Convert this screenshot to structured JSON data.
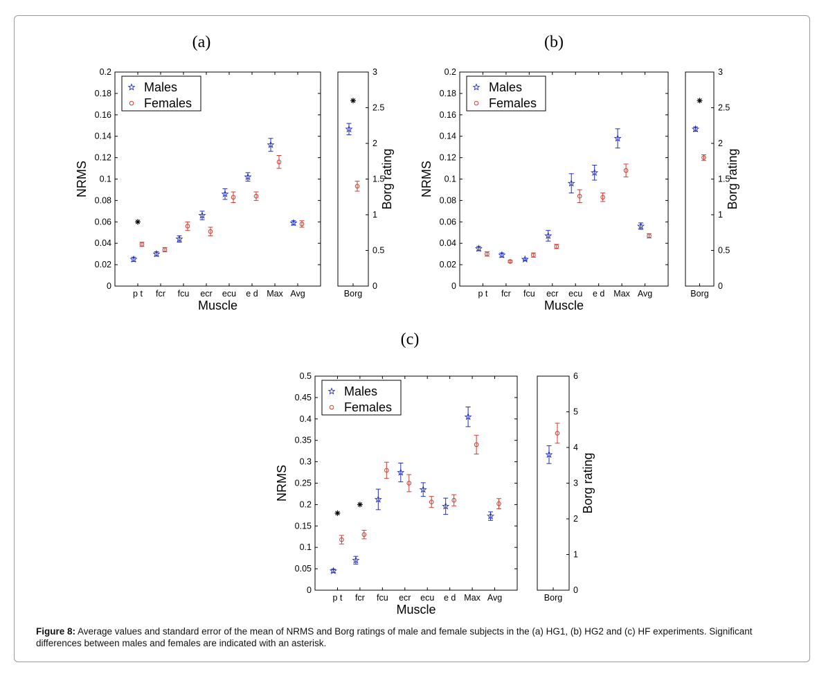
{
  "caption": {
    "label": "Figure 8:",
    "text": " Average values and standard error of the mean of NRMS and Borg ratings of male and female subjects in the (a) HG1, (b) HG2 and (c) HF experiments. Significant differences between males and females are indicated with an asterisk."
  },
  "colors": {
    "males": "#1f2bbf",
    "females": "#d23a2e",
    "asterisk": "#000000",
    "axis": "#000000"
  },
  "chart_data": [
    {
      "panel": "(a)",
      "type": "scatter",
      "xlabel": "Muscle",
      "ylabel": "NRMS",
      "categories": [
        "p t",
        "fcr",
        "fcu",
        "ecr",
        "ecu",
        "e d",
        "Max",
        "Avg"
      ],
      "ylim": [
        0,
        0.2
      ],
      "yticks": [
        0,
        0.02,
        0.04,
        0.06,
        0.08,
        0.1,
        0.12,
        0.14,
        0.16,
        0.18,
        0.2
      ],
      "legend": {
        "placement": "top-left",
        "entries": [
          "Males",
          "Females"
        ]
      },
      "series": [
        {
          "name": "Males",
          "marker": "star",
          "values": [
            0.025,
            0.03,
            0.044,
            0.066,
            0.086,
            0.102,
            0.132,
            0.059
          ],
          "sem": [
            0.002,
            0.002,
            0.003,
            0.004,
            0.005,
            0.004,
            0.006,
            0.002
          ]
        },
        {
          "name": "Females",
          "marker": "circle",
          "values": [
            0.039,
            0.034,
            0.056,
            0.051,
            0.083,
            0.084,
            0.116,
            0.058
          ],
          "sem": [
            0.002,
            0.002,
            0.004,
            0.004,
            0.005,
            0.004,
            0.006,
            0.003
          ]
        }
      ],
      "significant": [
        0.06,
        null,
        null,
        null,
        null,
        null,
        null,
        null
      ],
      "borg": {
        "ylabel": "Borg rating",
        "category": "Borg",
        "ylim": [
          0,
          3
        ],
        "yticks": [
          0,
          0.5,
          1,
          1.5,
          2,
          2.5,
          3
        ],
        "males": {
          "value": 2.2,
          "sem": 0.08
        },
        "females": {
          "value": 1.4,
          "sem": 0.07
        },
        "significant": 2.6
      }
    },
    {
      "panel": "(b)",
      "type": "scatter",
      "xlabel": "Muscle",
      "ylabel": "NRMS",
      "categories": [
        "p t",
        "fcr",
        "fcu",
        "ecr",
        "ecu",
        "e d",
        "Max",
        "Avg"
      ],
      "ylim": [
        0,
        0.2
      ],
      "yticks": [
        0,
        0.02,
        0.04,
        0.06,
        0.08,
        0.1,
        0.12,
        0.14,
        0.16,
        0.18,
        0.2
      ],
      "legend": {
        "placement": "top-left",
        "entries": [
          "Males",
          "Females"
        ]
      },
      "series": [
        {
          "name": "Males",
          "marker": "star",
          "values": [
            0.035,
            0.029,
            0.025,
            0.047,
            0.096,
            0.106,
            0.138,
            0.056
          ],
          "sem": [
            0.002,
            0.002,
            0.001,
            0.005,
            0.009,
            0.007,
            0.009,
            0.003
          ]
        },
        {
          "name": "Females",
          "marker": "circle",
          "values": [
            0.03,
            0.023,
            0.029,
            0.037,
            0.084,
            0.083,
            0.108,
            0.047
          ],
          "sem": [
            0.002,
            0.001,
            0.002,
            0.002,
            0.006,
            0.004,
            0.006,
            0.002
          ]
        }
      ],
      "significant": [
        null,
        null,
        null,
        null,
        null,
        null,
        null,
        null
      ],
      "borg": {
        "ylabel": "Borg rating",
        "category": "Borg",
        "ylim": [
          0,
          3
        ],
        "yticks": [
          0,
          0.5,
          1,
          1.5,
          2,
          2.5,
          3
        ],
        "males": {
          "value": 2.2,
          "sem": 0.03
        },
        "females": {
          "value": 1.8,
          "sem": 0.04
        },
        "significant": 2.6
      }
    },
    {
      "panel": "(c)",
      "type": "scatter",
      "xlabel": "Muscle",
      "ylabel": "NRMS",
      "categories": [
        "p t",
        "fcr",
        "fcu",
        "ecr",
        "ecu",
        "e d",
        "Max",
        "Avg"
      ],
      "ylim": [
        0,
        0.5
      ],
      "yticks": [
        0,
        0.05,
        0.1,
        0.15,
        0.2,
        0.25,
        0.3,
        0.35,
        0.4,
        0.45,
        0.5
      ],
      "legend": {
        "placement": "top-left",
        "entries": [
          "Males",
          "Females"
        ]
      },
      "series": [
        {
          "name": "Males",
          "marker": "star",
          "values": [
            0.045,
            0.07,
            0.212,
            0.275,
            0.235,
            0.196,
            0.405,
            0.173
          ],
          "sem": [
            0.004,
            0.009,
            0.024,
            0.022,
            0.016,
            0.019,
            0.023,
            0.01
          ]
        },
        {
          "name": "Females",
          "marker": "circle",
          "values": [
            0.118,
            0.13,
            0.28,
            0.25,
            0.206,
            0.21,
            0.34,
            0.202
          ],
          "sem": [
            0.01,
            0.01,
            0.019,
            0.02,
            0.013,
            0.013,
            0.022,
            0.012
          ]
        }
      ],
      "significant": [
        0.18,
        0.2,
        null,
        null,
        null,
        null,
        null,
        null
      ],
      "borg": {
        "ylabel": "Borg rating",
        "category": "Borg",
        "ylim": [
          0,
          6
        ],
        "yticks": [
          0,
          1,
          2,
          3,
          4,
          5,
          6
        ],
        "males": {
          "value": 3.8,
          "sem": 0.25
        },
        "females": {
          "value": 4.4,
          "sem": 0.28
        },
        "significant": null
      }
    }
  ]
}
